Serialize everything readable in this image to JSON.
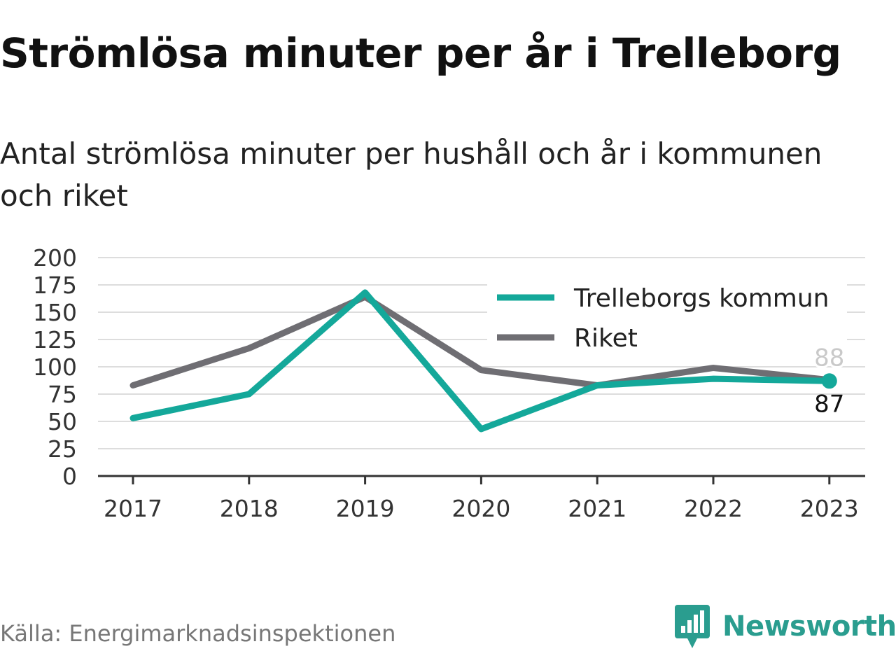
{
  "title": "Strömlösa minuter per år i Trelleborg",
  "subtitle": "Antal strömlösa minuter per hushåll och år i kommunen och riket",
  "source": "Källa: Energimarknadsinspektionen",
  "logo_text": "Newsworthy",
  "colors": {
    "kommun": "#14a89a",
    "riket": "#6f6e73",
    "grid": "#dddddd",
    "axis": "#333333",
    "brand": "#2a9d8f"
  },
  "chart_data": {
    "type": "line",
    "title": "Strömlösa minuter per år i Trelleborg",
    "xlabel": "",
    "ylabel": "",
    "x": [
      "2017",
      "2018",
      "2019",
      "2020",
      "2021",
      "2022",
      "2023"
    ],
    "ylim": [
      0,
      200
    ],
    "yticks": [
      "0",
      "25",
      "50",
      "75",
      "100",
      "125",
      "150",
      "175",
      "200"
    ],
    "grid": true,
    "legend_position": "top-right",
    "series": [
      {
        "name": "Trelleborgs kommun",
        "values": [
          53,
          75,
          168,
          43,
          83,
          89,
          87
        ],
        "end_label": "87",
        "color_key": "kommun"
      },
      {
        "name": "Riket",
        "values": [
          83,
          117,
          164,
          97,
          83,
          99,
          88
        ],
        "end_label": "88",
        "color_key": "riket"
      }
    ]
  }
}
